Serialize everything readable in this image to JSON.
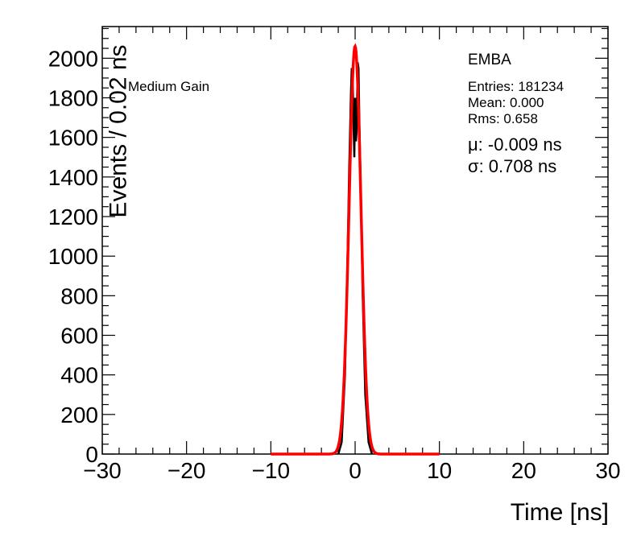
{
  "chart_data": {
    "type": "line",
    "xlabel": "Time [ns]",
    "ylabel": "Events / 0.02 ns",
    "xlim": [
      -30,
      30
    ],
    "ylim": [
      0,
      2160
    ],
    "x_ticks": [
      "−30",
      "−20",
      "−10",
      "0",
      "10",
      "20",
      "30"
    ],
    "y_ticks": [
      "0",
      "200",
      "400",
      "600",
      "800",
      "1000",
      "1200",
      "1400",
      "1600",
      "1800",
      "2000"
    ],
    "grid": false,
    "annotations": {
      "gain": "Medium Gain",
      "partition": "EMBA",
      "entries": "Entries: 181234",
      "mean": "Mean: 0.000",
      "rms": "Rms: 0.658",
      "mu": "μ: -0.009 ns",
      "sigma": "σ: 0.708 ns"
    },
    "series": [
      {
        "style": "histogram",
        "color": "#000000",
        "x": [
          -2.0,
          -1.6,
          -1.2,
          -0.9,
          -0.7,
          -0.5,
          -0.4,
          -0.3,
          -0.2,
          -0.1,
          0.0,
          0.1,
          0.2,
          0.3,
          0.4,
          0.5,
          0.7,
          0.9,
          1.2,
          1.6,
          2.0
        ],
        "y": [
          0,
          60,
          400,
          1000,
          1450,
          1820,
          1950,
          1900,
          1700,
          1500,
          1800,
          1580,
          1650,
          1980,
          1950,
          1700,
          1280,
          800,
          300,
          60,
          0
        ]
      },
      {
        "style": "gaussian-fit",
        "color": "#ff0000",
        "amplitude": 2060,
        "mean": -0.009,
        "sigma": 0.708,
        "x_range": [
          -10,
          10
        ]
      }
    ]
  }
}
